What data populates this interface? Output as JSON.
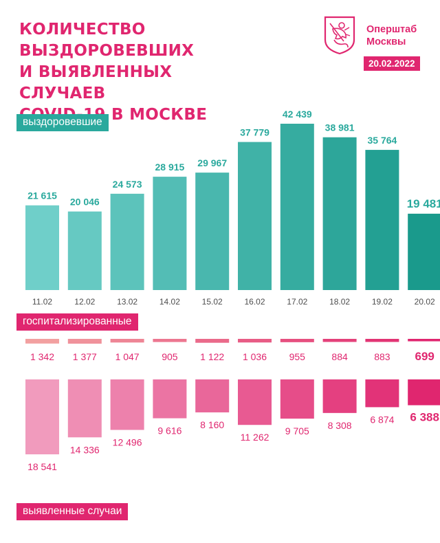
{
  "header": {
    "title_lines": [
      "КОЛИЧЕСТВО ВЫЗДОРОВЕВШИХ",
      "И ВЫЯВЛЕННЫХ СЛУЧАЕВ",
      "COVID-19 В МОСКВЕ"
    ],
    "org_lines": [
      "Оперштаб",
      "Москвы"
    ],
    "date": "20.02.2022"
  },
  "colors": {
    "accent_pink": "#e0266f",
    "recovered_light": "#6fcfc9",
    "recovered_dark": "#1a9a8c",
    "hosp_light": "#f2a0a0",
    "hosp_dark": "#e0266f",
    "cases_light": "#f19bbd",
    "cases_dark": "#e0266f",
    "recovered_label": "#2aa99d"
  },
  "chart_data": {
    "type": "bar",
    "categories": [
      "11.02",
      "12.02",
      "13.02",
      "14.02",
      "15.02",
      "16.02",
      "17.02",
      "18.02",
      "19.02",
      "20.02"
    ],
    "series": [
      {
        "name": "выздоровевшие",
        "values": [
          21615,
          20046,
          24573,
          28915,
          29967,
          37779,
          42439,
          38981,
          35764,
          19481
        ],
        "labels": [
          "21 615",
          "20 046",
          "24 573",
          "28 915",
          "29 967",
          "37 779",
          "42 439",
          "38 981",
          "35 764",
          "19 481"
        ]
      },
      {
        "name": "госпитализированные",
        "values": [
          1342,
          1377,
          1047,
          905,
          1122,
          1036,
          955,
          884,
          883,
          699
        ],
        "labels": [
          "1 342",
          "1 377",
          "1 047",
          "905",
          "1 122",
          "1 036",
          "955",
          "884",
          "883",
          "699"
        ]
      },
      {
        "name": "выявленные случаи",
        "values": [
          18541,
          14336,
          12496,
          9616,
          8160,
          11262,
          9705,
          8308,
          6874,
          6388
        ],
        "labels": [
          "18 541",
          "14 336",
          "12 496",
          "9 616",
          "8 160",
          "11 262",
          "9 705",
          "8 308",
          "6 874",
          "6 388"
        ]
      }
    ],
    "title": "КОЛИЧЕСТВО ВЫЗДОРОВЕВШИХ И ВЫЯВЛЕННЫХ СЛУЧАЕВ COVID-19 В МОСКВЕ",
    "legend": "labels"
  }
}
